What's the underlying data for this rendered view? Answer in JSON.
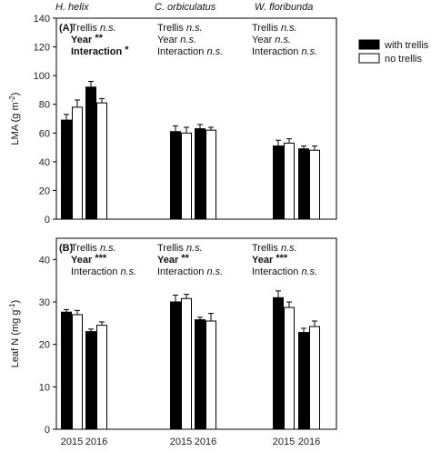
{
  "chart_data": [
    {
      "type": "bar",
      "panel": "(A)",
      "ylabel_parts": [
        "LMA (g m",
        "-2",
        ")"
      ],
      "ylim": [
        0,
        140
      ],
      "yticks": [
        0,
        20,
        40,
        60,
        80,
        100,
        120,
        140
      ],
      "species": [
        "H. helix",
        "C. orbiculatus",
        "W. floribunda"
      ],
      "stats": [
        [
          {
            "name": "Trellis",
            "sig": "n.s.",
            "bold": false
          },
          {
            "name": "Year",
            "sig": "**",
            "bold": true
          },
          {
            "name": "Interaction",
            "sig": "*",
            "bold": true
          }
        ],
        [
          {
            "name": "Trellis",
            "sig": "n.s.",
            "bold": false
          },
          {
            "name": "Year",
            "sig": "n.s.",
            "bold": false
          },
          {
            "name": "Interaction",
            "sig": "n.s.",
            "bold": false
          }
        ],
        [
          {
            "name": "Trellis",
            "sig": "n.s.",
            "bold": false
          },
          {
            "name": "Year",
            "sig": "n.s.",
            "bold": false
          },
          {
            "name": "Interaction",
            "sig": "n.s.",
            "bold": false
          }
        ]
      ],
      "series": [
        {
          "name": "with trellis",
          "color": "#000000",
          "values": [
            [
              69,
              92
            ],
            [
              61,
              63
            ],
            [
              51,
              49
            ]
          ],
          "errors": [
            [
              4,
              4
            ],
            [
              4,
              3
            ],
            [
              4,
              2
            ]
          ]
        },
        {
          "name": "no trellis",
          "color": "#ffffff",
          "values": [
            [
              78,
              81
            ],
            [
              60,
              62
            ],
            [
              53,
              48
            ]
          ],
          "errors": [
            [
              5,
              3
            ],
            [
              4,
              2
            ],
            [
              3,
              3
            ]
          ]
        }
      ],
      "legend_position": "top-right"
    },
    {
      "type": "bar",
      "panel": "(B)",
      "ylabel_parts": [
        "Leaf N (mg g",
        "-1",
        ")"
      ],
      "ylim": [
        0,
        45
      ],
      "yticks": [
        0,
        10,
        20,
        30,
        40
      ],
      "species": [],
      "stats": [
        [
          {
            "name": "Trellis",
            "sig": "n.s.",
            "bold": false
          },
          {
            "name": "Year",
            "sig": "***",
            "bold": true
          },
          {
            "name": "Interaction",
            "sig": "n.s.",
            "bold": false
          }
        ],
        [
          {
            "name": "Trellis",
            "sig": "n.s.",
            "bold": false
          },
          {
            "name": "Year",
            "sig": "**",
            "bold": true
          },
          {
            "name": "Interaction",
            "sig": "n.s.",
            "bold": false
          }
        ],
        [
          {
            "name": "Trellis",
            "sig": "n.s.",
            "bold": false
          },
          {
            "name": "Year",
            "sig": "***",
            "bold": true
          },
          {
            "name": "Interaction",
            "sig": "n.s.",
            "bold": false
          }
        ]
      ],
      "series": [
        {
          "name": "with trellis",
          "color": "#000000",
          "values": [
            [
              27.6,
              23
            ],
            [
              30,
              25.8
            ],
            [
              31,
              22.8
            ]
          ],
          "errors": [
            [
              0.6,
              0.6
            ],
            [
              1.6,
              0.6
            ],
            [
              1.6,
              1
            ]
          ]
        },
        {
          "name": "no trellis",
          "color": "#ffffff",
          "values": [
            [
              27,
              24.5
            ],
            [
              30.8,
              25.5
            ],
            [
              28.7,
              24.2
            ]
          ],
          "errors": [
            [
              1,
              0.8
            ],
            [
              1,
              1.8
            ],
            [
              1.3,
              1.3
            ]
          ]
        }
      ]
    }
  ],
  "x_years": [
    "2015",
    "2016"
  ],
  "legend": [
    {
      "label": "with trellis",
      "color": "#000000"
    },
    {
      "label": "no trellis",
      "color": "#ffffff"
    }
  ]
}
